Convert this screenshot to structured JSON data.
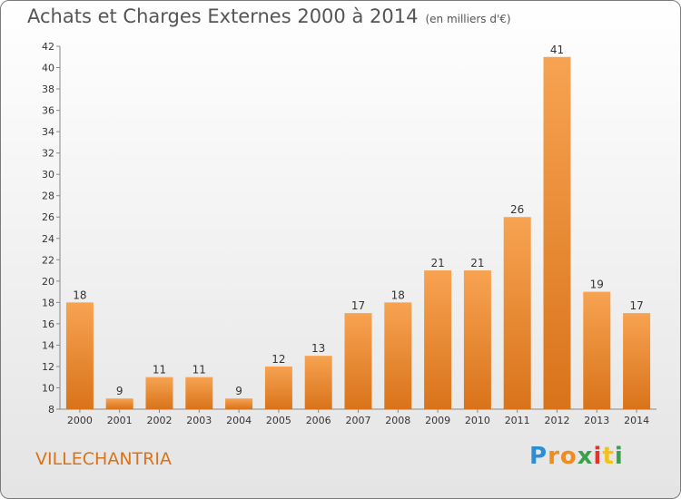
{
  "chart_data": {
    "type": "bar",
    "title": "Achats et Charges Externes 2000 à 2014",
    "subtitle": "(en milliers d'€)",
    "categories": [
      "2000",
      "2001",
      "2002",
      "2003",
      "2004",
      "2005",
      "2006",
      "2007",
      "2008",
      "2009",
      "2010",
      "2011",
      "2012",
      "2013",
      "2014"
    ],
    "values": [
      18,
      9,
      11,
      11,
      9,
      12,
      13,
      17,
      18,
      21,
      21,
      26,
      41,
      19,
      17
    ],
    "ylim": [
      8,
      42
    ],
    "yticks": [
      8,
      10,
      12,
      14,
      16,
      18,
      20,
      22,
      24,
      26,
      28,
      30,
      32,
      34,
      36,
      38,
      40,
      42
    ],
    "grid": false,
    "bar_color_top": "#f7a352",
    "bar_color_bottom": "#d9731a"
  },
  "footer": {
    "place": "VILLECHANTRIA",
    "logo": {
      "letters": [
        "P",
        "r",
        "o",
        "x",
        "i",
        "t",
        "i"
      ],
      "colors": [
        "#2a8fd6",
        "#f28a1c",
        "#f28a1c",
        "#3aa14a",
        "#e2342b",
        "#f2c21c",
        "#3aa14a"
      ]
    }
  }
}
